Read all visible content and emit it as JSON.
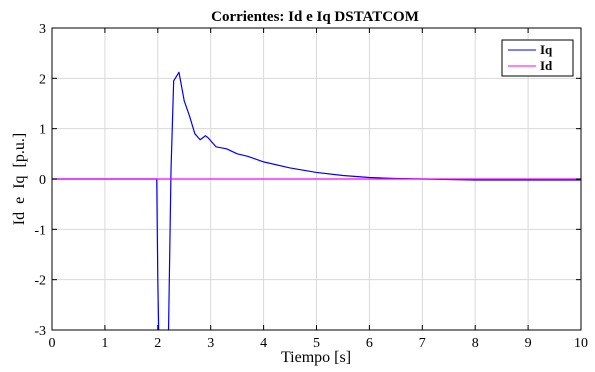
{
  "chart_data": {
    "type": "line",
    "title": "Corrientes: Id e Iq DSTATCOM",
    "xlabel": "Tiempo [s]",
    "ylabel": "Id e Iq [p.u.]",
    "xlim": [
      0,
      10
    ],
    "ylim": [
      -3,
      3
    ],
    "xticks": [
      0,
      1,
      2,
      3,
      4,
      5,
      6,
      7,
      8,
      9,
      10
    ],
    "yticks": [
      -3,
      -2,
      -1,
      0,
      1,
      2,
      3
    ],
    "grid": true,
    "legend_position": "top-right",
    "series": [
      {
        "name": "Iq",
        "color": "#0000ff",
        "x": [
          0,
          1.98,
          2.0,
          2.02,
          2.05,
          2.1,
          2.15,
          2.2,
          2.25,
          2.3,
          2.4,
          2.5,
          2.6,
          2.7,
          2.8,
          2.85,
          2.9,
          2.95,
          3.0,
          3.1,
          3.2,
          3.3,
          3.4,
          3.5,
          3.7,
          4.0,
          4.5,
          5.0,
          5.5,
          6.0,
          6.5,
          7.0,
          7.5,
          8.0,
          9.0,
          10.0
        ],
        "y": [
          0,
          0,
          -2.0,
          -3.2,
          -3.2,
          -3.2,
          -3.2,
          -3.2,
          0.2,
          1.95,
          2.12,
          1.55,
          1.25,
          0.9,
          0.78,
          0.82,
          0.86,
          0.82,
          0.76,
          0.64,
          0.62,
          0.6,
          0.55,
          0.5,
          0.45,
          0.34,
          0.22,
          0.13,
          0.07,
          0.03,
          0.01,
          0.0,
          -0.01,
          -0.02,
          -0.02,
          -0.02
        ]
      },
      {
        "name": "Id",
        "color": "#ff00ff",
        "x": [
          0,
          10
        ],
        "y": [
          0,
          0
        ]
      }
    ]
  }
}
